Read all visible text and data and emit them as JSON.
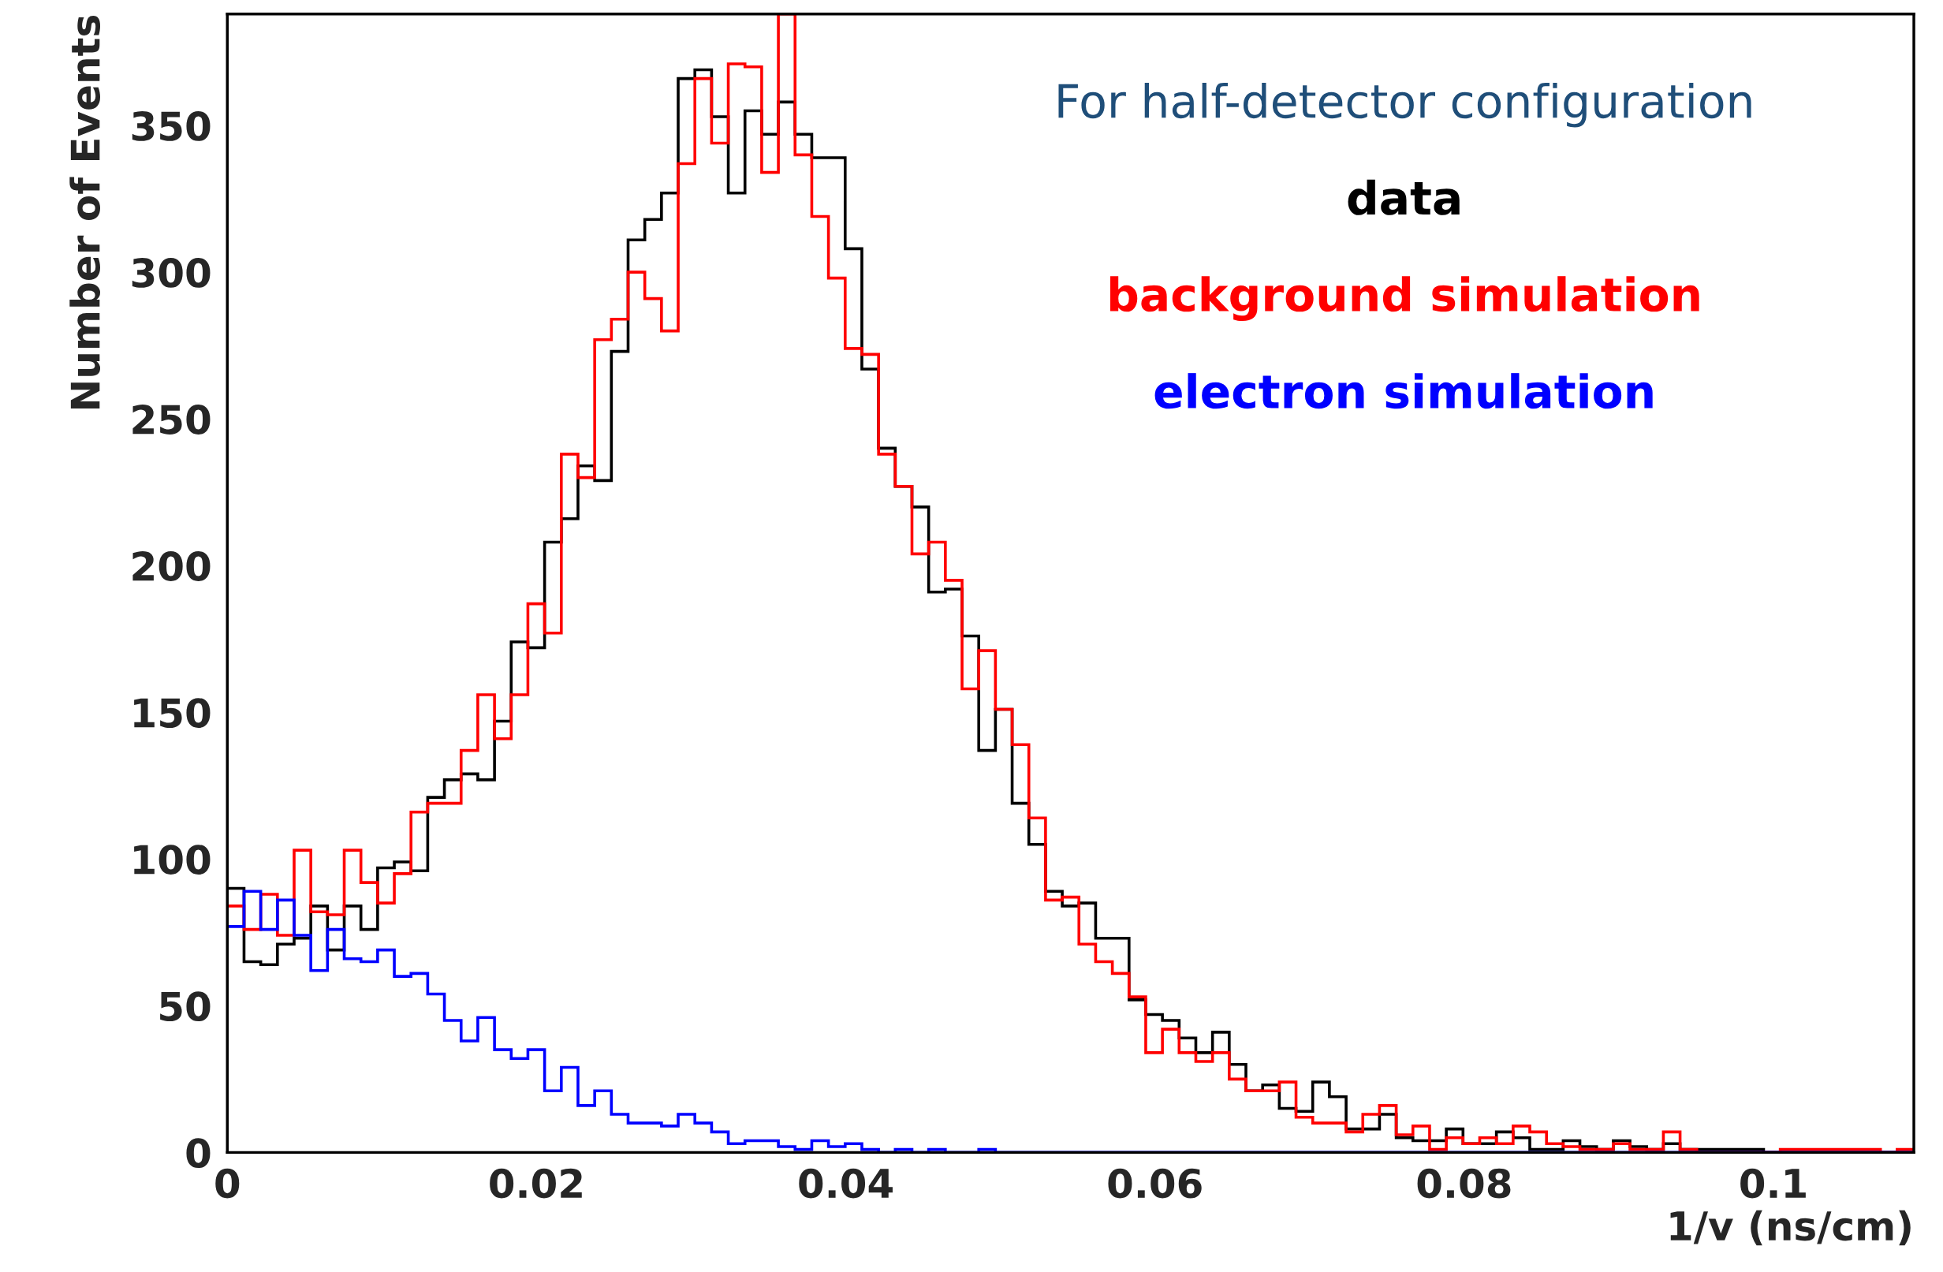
{
  "chart_data": {
    "type": "histogram",
    "xlabel": "1/v (ns/cm)",
    "ylabel": "Number of Events",
    "legend_title": "For half-detector configuration",
    "bins": [
      0,
      0.00108,
      0.00216,
      0.00324,
      0.00432,
      0.0054,
      0.00648,
      0.00756,
      0.00864,
      0.00972,
      0.0108,
      0.01188,
      0.01296,
      0.01404,
      0.01512,
      0.0162,
      0.01728,
      0.01836,
      0.01944,
      0.02052,
      0.0216,
      0.02268,
      0.02376,
      0.02484,
      0.02592,
      0.027,
      0.02808,
      0.02916,
      0.03024,
      0.03132,
      0.0324,
      0.03348,
      0.03456,
      0.03564,
      0.03672,
      0.0378,
      0.03888,
      0.03996,
      0.04104,
      0.04212,
      0.0432,
      0.04428,
      0.04536,
      0.04644,
      0.04752,
      0.0486,
      0.04968,
      0.05076,
      0.05184,
      0.05292,
      0.054,
      0.05508,
      0.05616,
      0.05724,
      0.05832,
      0.0594,
      0.06048,
      0.06156,
      0.06264,
      0.06372,
      0.0648,
      0.06588,
      0.06696,
      0.06804,
      0.06912,
      0.0702,
      0.07128,
      0.07236,
      0.07344,
      0.07452,
      0.0756,
      0.07668,
      0.07776,
      0.07884,
      0.07992,
      0.081,
      0.08208,
      0.08316,
      0.08424,
      0.08532,
      0.0864,
      0.08748,
      0.08856,
      0.08964,
      0.09072,
      0.0918,
      0.09288,
      0.09396,
      0.09504,
      0.09612,
      0.0972,
      0.09828,
      0.09936,
      0.10044,
      0.10152,
      0.1026,
      0.10368,
      0.10476,
      0.10584,
      0.10692,
      0.108,
      0.10908
    ],
    "series": [
      {
        "name": "data",
        "color": "#000000",
        "values": [
          90,
          65,
          64,
          71,
          73,
          84,
          69,
          84,
          76,
          97,
          99,
          96,
          121,
          127,
          129,
          127,
          147,
          174,
          172,
          208,
          216,
          234,
          229,
          273,
          311,
          318,
          327,
          366,
          369,
          353,
          327,
          355,
          347,
          358,
          347,
          339,
          339,
          308,
          267,
          240,
          227,
          220,
          191,
          192,
          176,
          137,
          151,
          119,
          105,
          89,
          84,
          85,
          73,
          73,
          52,
          47,
          45,
          39,
          34,
          41,
          30,
          21,
          23,
          15,
          14,
          24,
          19,
          8,
          8,
          13,
          5,
          4,
          4,
          8,
          3,
          3,
          7,
          5,
          1,
          1,
          4,
          2,
          1,
          4,
          2,
          1,
          3,
          1,
          1,
          1,
          1,
          1,
          0,
          0,
          0,
          0,
          0,
          0,
          0,
          0,
          0
        ]
      },
      {
        "name": "background simulation",
        "color": "#ff0000",
        "values": [
          84,
          76,
          88,
          74,
          103,
          82,
          81,
          103,
          92,
          85,
          95,
          116,
          119,
          119,
          137,
          156,
          141,
          156,
          187,
          177,
          238,
          230,
          277,
          284,
          300,
          291,
          280,
          337,
          366,
          344,
          371,
          370,
          334,
          388,
          340,
          319,
          298,
          274,
          272,
          238,
          227,
          204,
          208,
          195,
          158,
          171,
          151,
          139,
          114,
          86,
          87,
          71,
          65,
          61,
          53,
          34,
          42,
          34,
          31,
          34,
          25,
          21,
          21,
          24,
          12,
          10,
          10,
          7,
          13,
          16,
          6,
          9,
          1,
          5,
          3,
          5,
          3,
          9,
          7,
          3,
          2,
          1,
          1,
          3,
          1,
          1,
          7,
          1,
          0,
          0,
          0,
          0,
          0,
          1,
          1,
          1,
          1,
          1,
          1,
          0,
          1
        ]
      },
      {
        "name": "electron simulation",
        "color": "#0000ff",
        "values": [
          77,
          89,
          76,
          86,
          74,
          62,
          76,
          66,
          65,
          69,
          60,
          61,
          54,
          45,
          38,
          46,
          35,
          32,
          35,
          21,
          29,
          16,
          21,
          13,
          10,
          10,
          9,
          13,
          10,
          7,
          3,
          4,
          4,
          2,
          1,
          4,
          2,
          3,
          1,
          0,
          1,
          0,
          1,
          0,
          0,
          1,
          0,
          0,
          0,
          0,
          0,
          0,
          0,
          0,
          0,
          0,
          0,
          0,
          0,
          0,
          0,
          0,
          0,
          0,
          0,
          0,
          0,
          0,
          0,
          0,
          0,
          0,
          0,
          0,
          0,
          0,
          0,
          0,
          0,
          0,
          0,
          0,
          0,
          0,
          0,
          0,
          0,
          0,
          0,
          0,
          0,
          0,
          0,
          0,
          0,
          0,
          0,
          0,
          0,
          0,
          0
        ]
      }
    ],
    "xlim": [
      0,
      0.10908
    ],
    "ylim": [
      0,
      388
    ],
    "xticks": [
      0,
      0.02,
      0.04,
      0.06,
      0.08,
      0.1
    ],
    "yticks": [
      0,
      50,
      100,
      150,
      200,
      250,
      300,
      350
    ],
    "grid": false,
    "legend": "top right"
  }
}
